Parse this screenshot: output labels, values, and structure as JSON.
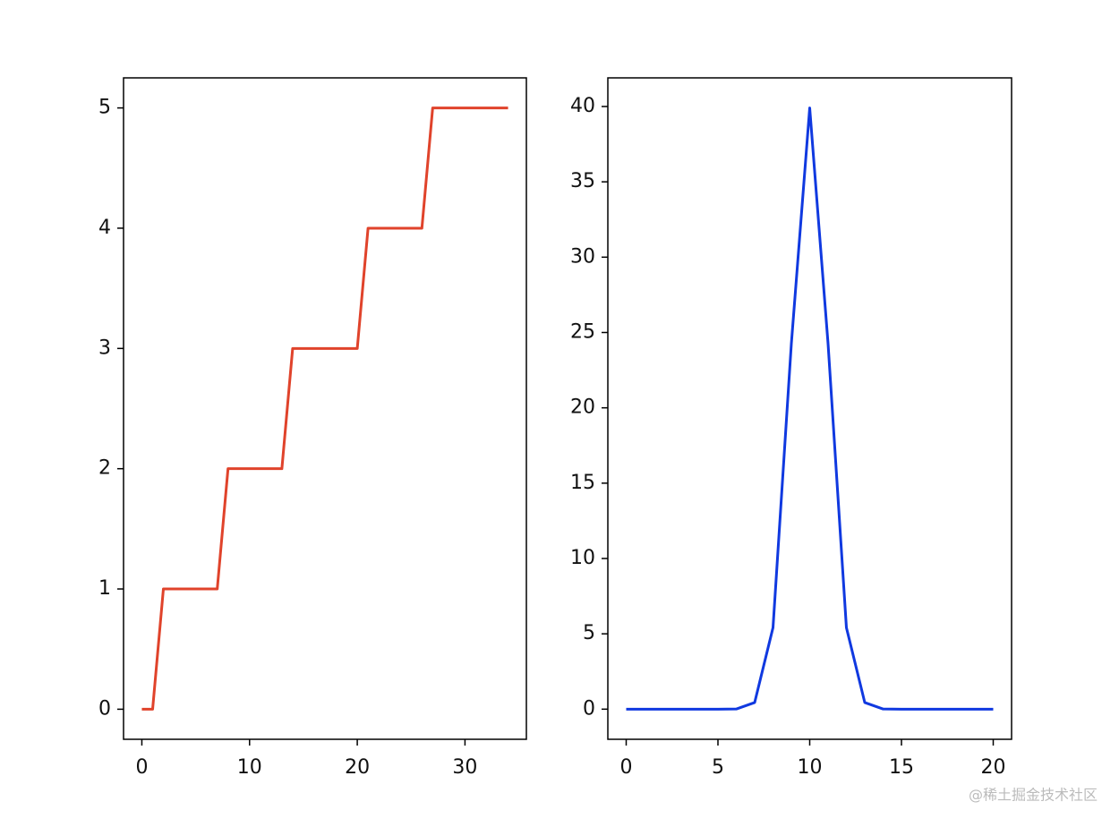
{
  "chart_data": [
    {
      "type": "line",
      "x": [
        0,
        1,
        2,
        3,
        4,
        5,
        6,
        7,
        8,
        9,
        10,
        11,
        12,
        13,
        14,
        15,
        16,
        17,
        18,
        19,
        20,
        21,
        22,
        23,
        24,
        25,
        26,
        27,
        28,
        29,
        30,
        31,
        32,
        33,
        34
      ],
      "series": [
        {
          "color": "#e0432b",
          "values": [
            0,
            0,
            1,
            1,
            1,
            1,
            1,
            1,
            2,
            2,
            2,
            2,
            2,
            2,
            3,
            3,
            3,
            3,
            3,
            3,
            3,
            4,
            4,
            4,
            4,
            4,
            4,
            5,
            5,
            5,
            5,
            5,
            5,
            5,
            5
          ]
        }
      ],
      "xlim": [
        -1.7,
        35.7
      ],
      "xticks": [
        0,
        10,
        20,
        30
      ],
      "ylim": [
        -0.25,
        5.25
      ],
      "yticks": [
        0,
        1,
        2,
        3,
        4,
        5
      ]
    },
    {
      "type": "line",
      "x": [
        0,
        1,
        2,
        3,
        4,
        5,
        6,
        7,
        8,
        9,
        10,
        11,
        12,
        13,
        14,
        15,
        16,
        17,
        18,
        19,
        20
      ],
      "series": [
        {
          "color": "#1039e0",
          "values": [
            0,
            0,
            0,
            0,
            0,
            0,
            0.01,
            0.44,
            5.41,
            24.26,
            39.9,
            24.26,
            5.41,
            0.44,
            0.01,
            0,
            0,
            0,
            0,
            0,
            0
          ]
        }
      ],
      "xlim": [
        -1,
        21
      ],
      "xticks": [
        0,
        5,
        10,
        15,
        20
      ],
      "ylim": [
        -2,
        41.9
      ],
      "yticks": [
        0,
        5,
        10,
        15,
        20,
        25,
        30,
        35,
        40
      ]
    }
  ],
  "watermark": "@稀土掘金技术社区"
}
